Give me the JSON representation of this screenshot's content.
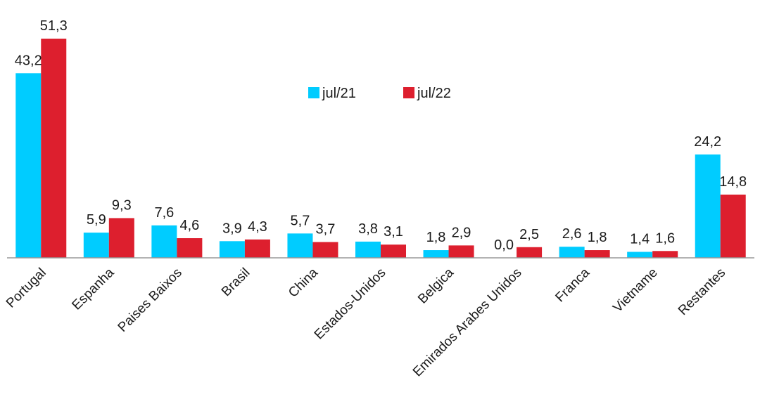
{
  "chart_data": {
    "type": "bar",
    "categories": [
      "Portugal",
      "Espanha",
      "Paises Baixos",
      "Brasil",
      "China",
      "Estados-Unidos",
      "Belgica",
      "Emirados Arabes Unidos",
      "Franca",
      "Vietname",
      "Restantes"
    ],
    "series": [
      {
        "name": "jul/21",
        "color": "#00CCFF",
        "values": [
          43.2,
          5.9,
          7.6,
          3.9,
          5.7,
          3.8,
          1.8,
          0.0,
          2.6,
          1.4,
          24.2
        ],
        "labels": [
          "43,2",
          "5,9",
          "7,6",
          "3,9",
          "5,7",
          "3,8",
          "1,8",
          "0,0",
          "2,6",
          "1,4",
          "24,2"
        ]
      },
      {
        "name": "jul/22",
        "color": "#DD1F2E",
        "values": [
          51.3,
          9.3,
          4.6,
          4.3,
          3.7,
          3.1,
          2.9,
          2.5,
          1.8,
          1.6,
          14.8
        ],
        "labels": [
          "51,3",
          "9,3",
          "4,6",
          "4,3",
          "3,7",
          "3,1",
          "2,9",
          "2,5",
          "1,8",
          "1,6",
          "14,8"
        ]
      }
    ],
    "legend_position": "top-center",
    "grid": false,
    "ylim": [
      0,
      51.3
    ]
  }
}
